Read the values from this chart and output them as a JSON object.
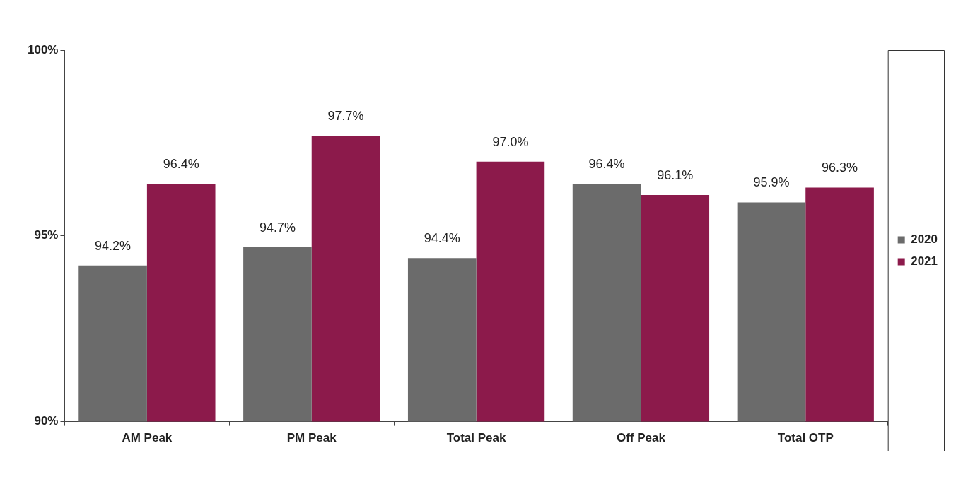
{
  "chart_data": {
    "type": "bar",
    "categories": [
      "AM Peak",
      "PM Peak",
      "Total Peak",
      "Off Peak",
      "Total OTP"
    ],
    "series": [
      {
        "name": "2020",
        "color": "#6b6b6b",
        "values": [
          94.2,
          94.7,
          94.4,
          96.4,
          95.9
        ],
        "value_labels": [
          "94.2%",
          "94.7%",
          "94.4%",
          "96.4%",
          "95.9%"
        ]
      },
      {
        "name": "2021",
        "color": "#8c1a4b",
        "values": [
          96.4,
          97.7,
          97.0,
          96.1,
          96.3
        ],
        "value_labels": [
          "96.4%",
          "97.7%",
          "97.0%",
          "96.1%",
          "96.3%"
        ]
      }
    ],
    "ylim": [
      90,
      100
    ],
    "yticks": [
      {
        "value": 90,
        "label": "90%"
      },
      {
        "value": 95,
        "label": "95%"
      },
      {
        "value": 100,
        "label": "100%"
      }
    ],
    "grid": false,
    "legend": "right"
  }
}
